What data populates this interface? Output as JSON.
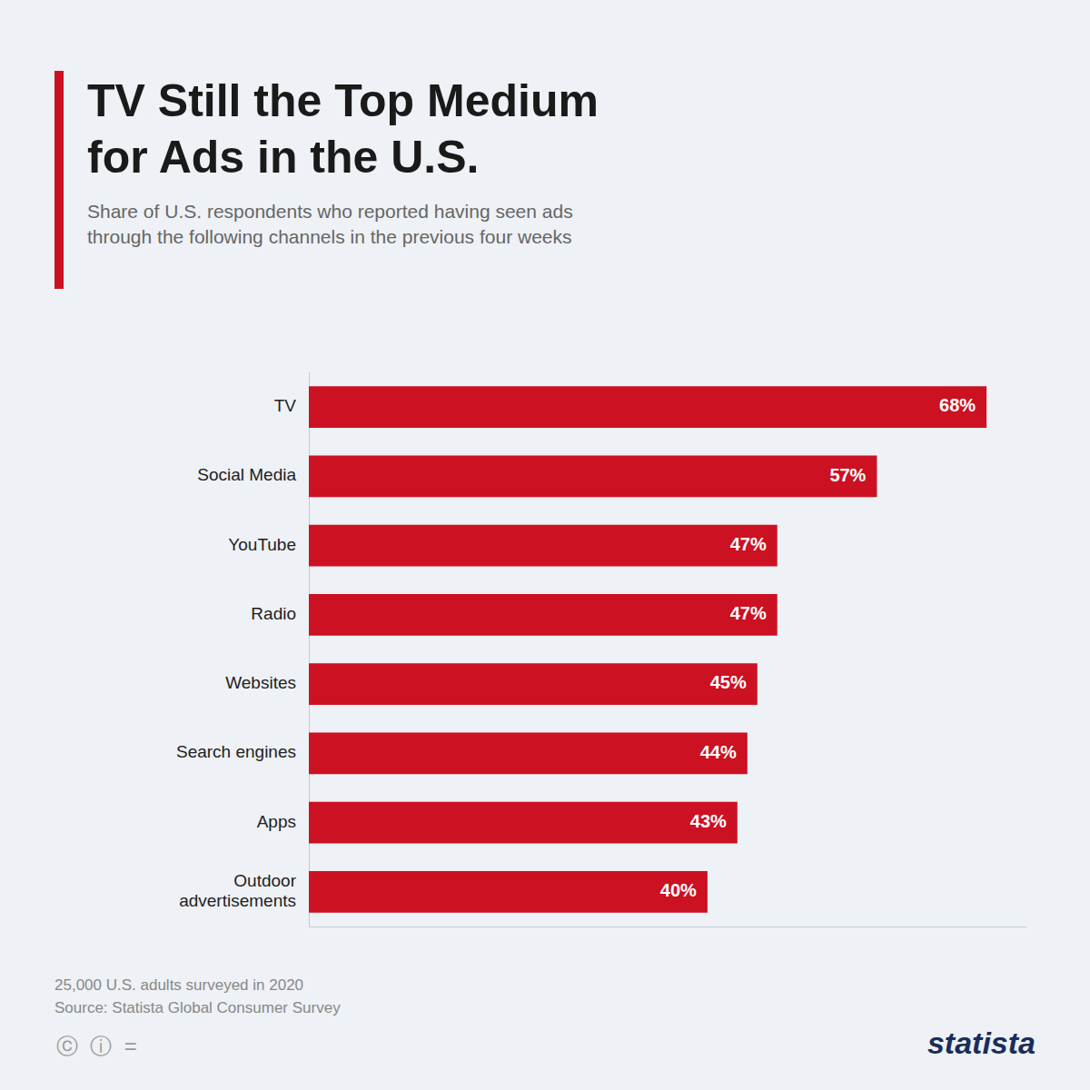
{
  "chart_data": {
    "type": "bar",
    "title": "TV Still the Top Medium\nfor Ads in the U.S.",
    "subtitle": "Share of U.S. respondents who reported having seen ads\nthrough the following channels in the previous four weeks",
    "categories": [
      "TV",
      "Social Media",
      "YouTube",
      "Radio",
      "Websites",
      "Search engines",
      "Apps",
      "Outdoor\nadvertisements"
    ],
    "values": [
      68,
      57,
      47,
      47,
      45,
      44,
      43,
      40
    ],
    "value_labels": [
      "68%",
      "57%",
      "47%",
      "47%",
      "45%",
      "44%",
      "43%",
      "40%"
    ],
    "color": "#cc1122",
    "orientation": "horizontal",
    "xlim": [
      0,
      72
    ],
    "data_labels": true,
    "tick_labels": false,
    "grid": false,
    "annotations": [
      "25,000 U.S. adults surveyed in 2020",
      "Source: Statista Global Consumer Survey",
      "statista",
      "ⓒ  ⓘ  ="
    ]
  }
}
